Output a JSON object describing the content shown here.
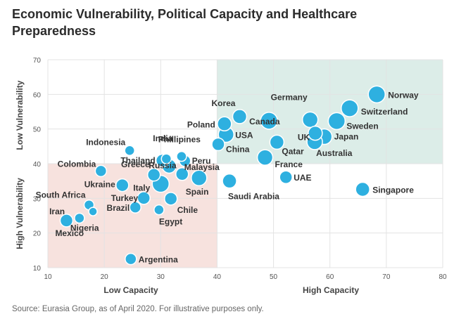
{
  "title": "Economic Vulnerability, Political Capacity and Healthcare Preparedness",
  "source": "Source: Eurasia Group, as of April 2020. For illustrative purposes only.",
  "colors": {
    "bubble": "#2eb0e0",
    "top_right_zone": "#dcede8",
    "bottom_left_zone": "#f7e2de",
    "grid": "#e3e3e3"
  },
  "chart_data": {
    "type": "scatter",
    "title": "Economic Vulnerability, Political Capacity and Healthcare Preparedness",
    "xlim": [
      10,
      80
    ],
    "ylim": [
      10,
      70
    ],
    "x_ticks": [
      10,
      20,
      30,
      40,
      50,
      60,
      70,
      80
    ],
    "y_ticks": [
      10,
      20,
      30,
      40,
      50,
      60,
      70
    ],
    "grid": true,
    "x_axis_labels": {
      "low": "Low Capacity",
      "high": "High Capacity"
    },
    "y_axis_labels": {
      "low": "Low Vulnerability",
      "high": "High Vulnerability"
    },
    "zones": [
      {
        "x": [
          40,
          80
        ],
        "y": [
          40,
          70
        ],
        "color": "#dcede8"
      },
      {
        "x": [
          10,
          40
        ],
        "y": [
          10,
          40
        ],
        "color": "#f7e2de"
      }
    ],
    "points": [
      {
        "name": "Norway",
        "x": 68.3,
        "y": 60,
        "size": 12
      },
      {
        "name": "Switzerland",
        "x": 63.5,
        "y": 56,
        "size": 12
      },
      {
        "name": "Sweden",
        "x": 61.2,
        "y": 52.3,
        "size": 12
      },
      {
        "name": "Germany",
        "x": 56.5,
        "y": 52.7,
        "size": 11
      },
      {
        "name": "Canada",
        "x": 49.2,
        "y": 52.4,
        "size": 12
      },
      {
        "name": "UK",
        "x": 57.4,
        "y": 48.8,
        "size": 10
      },
      {
        "name": "Japan",
        "x": 59.0,
        "y": 47.8,
        "size": 11
      },
      {
        "name": "Australia",
        "x": 57.3,
        "y": 46.3,
        "size": 11
      },
      {
        "name": "Qatar",
        "x": 50.6,
        "y": 46.2,
        "size": 10
      },
      {
        "name": "France",
        "x": 48.5,
        "y": 41.8,
        "size": 11
      },
      {
        "name": "Korea",
        "x": 44.0,
        "y": 53.6,
        "size": 10
      },
      {
        "name": "Poland",
        "x": 41.3,
        "y": 51.5,
        "size": 10
      },
      {
        "name": "USA",
        "x": 41.6,
        "y": 48.4,
        "size": 11
      },
      {
        "name": "China",
        "x": 40.2,
        "y": 45.6,
        "size": 9
      },
      {
        "name": "UAE",
        "x": 52.2,
        "y": 36.1,
        "size": 9
      },
      {
        "name": "Saudi Arabia",
        "x": 42.2,
        "y": 35.0,
        "size": 10
      },
      {
        "name": "Singapore",
        "x": 65.8,
        "y": 32.6,
        "size": 10
      },
      {
        "name": "Indonesia",
        "x": 24.5,
        "y": 43.8,
        "size": 7
      },
      {
        "name": "Phillipines",
        "x": 33.7,
        "y": 42.1,
        "size": 7
      },
      {
        "name": "India",
        "x": 31.0,
        "y": 41.4,
        "size": 7
      },
      {
        "name": "Thailand",
        "x": 30.3,
        "y": 40.9,
        "size": 9
      },
      {
        "name": "Peru",
        "x": 34.3,
        "y": 40.8,
        "size": 8
      },
      {
        "name": "Russia",
        "x": 31.5,
        "y": 39.3,
        "size": 10
      },
      {
        "name": "Malaysia",
        "x": 33.8,
        "y": 37.0,
        "size": 9
      },
      {
        "name": "Colombia",
        "x": 19.4,
        "y": 37.9,
        "size": 8
      },
      {
        "name": "Greece",
        "x": 28.8,
        "y": 36.8,
        "size": 9
      },
      {
        "name": "Spain",
        "x": 36.8,
        "y": 35.9,
        "size": 11
      },
      {
        "name": "Italy",
        "x": 30.0,
        "y": 34.2,
        "size": 12
      },
      {
        "name": "Ukraine",
        "x": 23.2,
        "y": 33.8,
        "size": 9
      },
      {
        "name": "Turkey",
        "x": 27.0,
        "y": 30.1,
        "size": 9
      },
      {
        "name": "Chile",
        "x": 31.8,
        "y": 29.9,
        "size": 9
      },
      {
        "name": "South Africa",
        "x": 17.3,
        "y": 28.1,
        "size": 7
      },
      {
        "name": "Brazil",
        "x": 25.5,
        "y": 27.4,
        "size": 8
      },
      {
        "name": "Egypt",
        "x": 29.7,
        "y": 26.7,
        "size": 7
      },
      {
        "name": "Iran",
        "x": 18.0,
        "y": 26.2,
        "size": 6
      },
      {
        "name": "Nigeria",
        "x": 15.6,
        "y": 24.3,
        "size": 7
      },
      {
        "name": "Mexico",
        "x": 13.3,
        "y": 23.6,
        "size": 9
      },
      {
        "name": "Argentina",
        "x": 24.7,
        "y": 12.5,
        "size": 8
      }
    ]
  }
}
